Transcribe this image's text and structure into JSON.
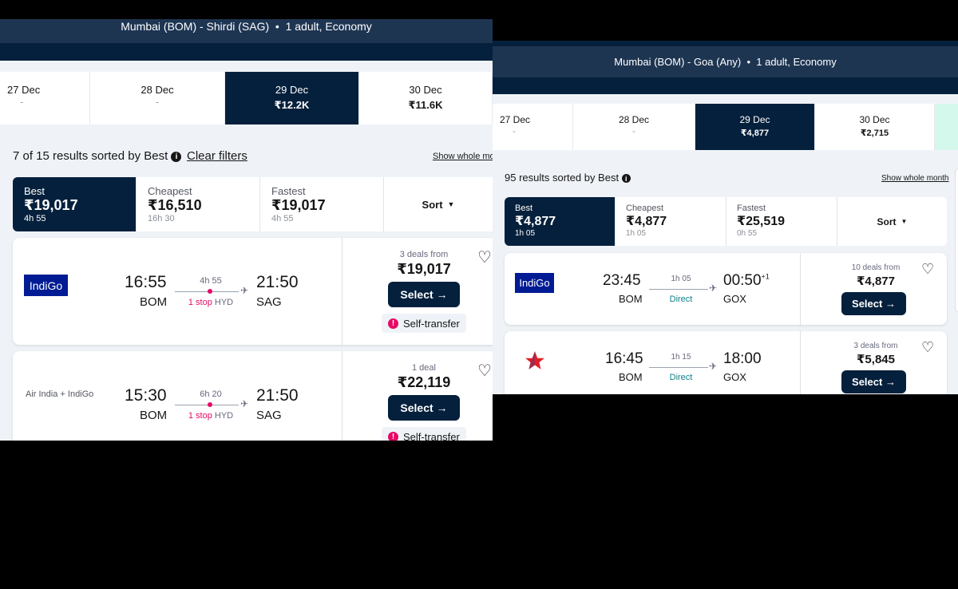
{
  "left": {
    "header": {
      "route": "Mumbai (BOM) - Shirdi (SAG)",
      "passengers": "1 adult, Economy"
    },
    "dates": [
      {
        "date": "27 Dec",
        "price": "-"
      },
      {
        "date": "28 Dec",
        "price": "-"
      },
      {
        "date": "29 Dec",
        "price": "₹12.2K",
        "selected": true
      },
      {
        "date": "30 Dec",
        "price": "₹11.6K"
      }
    ],
    "results_text": "7 of 15 results sorted by Best",
    "clear_filters": "Clear filters",
    "show_month": "Show whole mo",
    "tabs": [
      {
        "label": "Best",
        "price": "₹19,017",
        "time": "4h 55",
        "selected": true
      },
      {
        "label": "Cheapest",
        "price": "₹16,510",
        "time": "16h 30"
      },
      {
        "label": "Fastest",
        "price": "₹19,017",
        "time": "4h 55"
      }
    ],
    "sort_label": "Sort",
    "flights": [
      {
        "airline": "IndiGo",
        "dep": "16:55",
        "from": "BOM",
        "duration": "4h 55",
        "stops": "1 stop",
        "via": "HYD",
        "arr": "21:50",
        "to": "SAG",
        "deals": "3 deals from",
        "price": "₹19,017",
        "select": "Select →",
        "badge": "Self-transfer"
      },
      {
        "airline": "Air India + IndiGo",
        "dep": "15:30",
        "from": "BOM",
        "duration": "6h 20",
        "stops": "1 stop",
        "via": "HYD",
        "arr": "21:50",
        "to": "SAG",
        "deals": "1 deal",
        "price": "₹22,119",
        "select": "Select →",
        "badge": "Self-transfer"
      }
    ]
  },
  "right": {
    "header": {
      "route": "Mumbai (BOM) - Goa (Any)",
      "passengers": "1 adult, Economy"
    },
    "dates": [
      {
        "date": "27 Dec",
        "price": "-"
      },
      {
        "date": "28 Dec",
        "price": "-"
      },
      {
        "date": "29 Dec",
        "price": "₹4,877",
        "selected": true
      },
      {
        "date": "30 Dec",
        "price": "₹2,715"
      }
    ],
    "results_text": "95 results sorted by Best",
    "show_month": "Show whole month",
    "tabs": [
      {
        "label": "Best",
        "price": "₹4,877",
        "time": "1h 05",
        "selected": true
      },
      {
        "label": "Cheapest",
        "price": "₹4,877",
        "time": "1h 05"
      },
      {
        "label": "Fastest",
        "price": "₹25,519",
        "time": "0h 55"
      }
    ],
    "sort_label": "Sort",
    "flights": [
      {
        "airline": "IndiGo",
        "dep": "23:45",
        "from": "BOM",
        "duration": "1h 05",
        "stops": "Direct",
        "arr": "00:50",
        "arr_offset": "+1",
        "to": "GOX",
        "deals": "10 deals from",
        "price": "₹4,877",
        "select": "Select →"
      },
      {
        "airline_logo": "red-star-logo",
        "dep": "16:45",
        "from": "BOM",
        "duration": "1h 15",
        "stops": "Direct",
        "arr": "18:00",
        "to": "GOX",
        "deals": "3 deals from",
        "price": "₹5,845",
        "select": "Select →"
      }
    ]
  },
  "colors": {
    "navy": "#05203c",
    "header": "#1e3552",
    "stop": "#e70866",
    "direct": "#0c838a",
    "indigo": "#001b94"
  }
}
